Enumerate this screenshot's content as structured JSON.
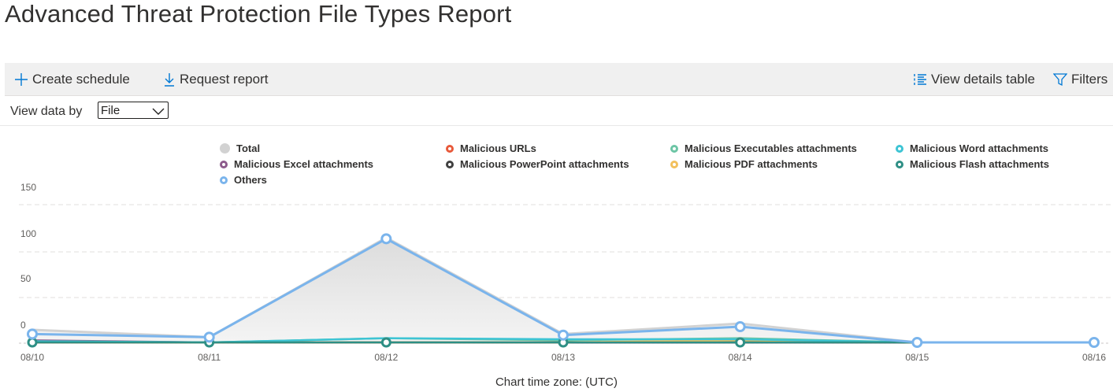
{
  "page": {
    "title": "Advanced Threat Protection File Types Report"
  },
  "toolbar": {
    "create_schedule": "Create schedule",
    "request_report": "Request report",
    "view_details_table": "View details table",
    "filters": "Filters"
  },
  "view_by": {
    "label": "View data by",
    "selected": "File"
  },
  "chart_data": {
    "type": "line",
    "title": "",
    "xlabel": "Chart time zone: (UTC)",
    "ylabel": "",
    "ylim": [
      0,
      150
    ],
    "yticks": [
      "150",
      "100",
      "50",
      "0"
    ],
    "x": [
      "08/10",
      "08/11",
      "08/12",
      "08/13",
      "08/14",
      "08/15",
      "08/16"
    ],
    "grid": true,
    "legend": "top",
    "series": [
      {
        "name": "Total",
        "color": "#d2d2d2",
        "values": [
          12,
          5,
          100,
          8,
          18,
          0,
          0
        ]
      },
      {
        "name": "Malicious URLs",
        "color": "#e8593a",
        "values": [
          0,
          0,
          0,
          0,
          0,
          0,
          0
        ]
      },
      {
        "name": "Malicious Executables attachments",
        "color": "#6cc5a5",
        "values": [
          1,
          0,
          4,
          2,
          4,
          0,
          0
        ]
      },
      {
        "name": "Malicious Word attachments",
        "color": "#3dc4d4",
        "values": [
          1,
          0,
          4,
          3,
          3,
          0,
          0
        ]
      },
      {
        "name": "Malicious Excel attachments",
        "color": "#8d5b8c",
        "values": [
          2,
          0,
          0,
          0,
          0,
          0,
          0
        ]
      },
      {
        "name": "Malicious PowerPoint attachments",
        "color": "#404040",
        "values": [
          0,
          0,
          0,
          0,
          0,
          0,
          0
        ]
      },
      {
        "name": "Malicious PDF attachments",
        "color": "#f2c05c",
        "values": [
          0,
          0,
          0,
          0,
          2,
          0,
          0
        ]
      },
      {
        "name": "Malicious Flash attachments",
        "color": "#2e8f85",
        "values": [
          0,
          0,
          0,
          0,
          0,
          0,
          0
        ]
      },
      {
        "name": "Others",
        "color": "#7ab4ec",
        "values": [
          8,
          5,
          99,
          7,
          15,
          0,
          0
        ]
      }
    ]
  }
}
